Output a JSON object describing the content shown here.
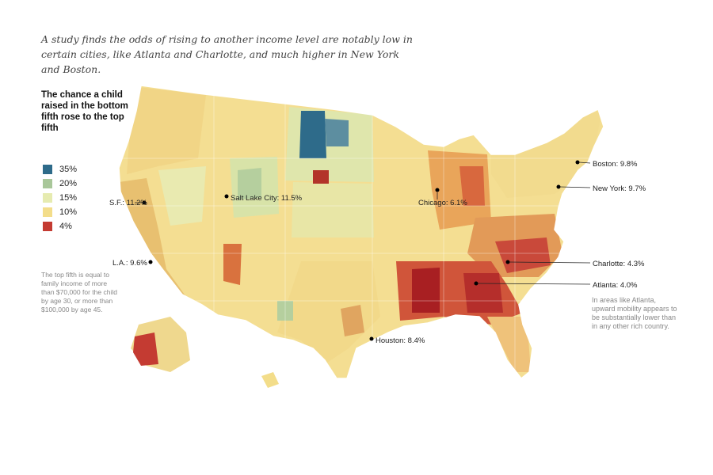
{
  "subtitle": "A study finds the odds of rising to another income level are notably low in certain cities, like Atlanta and Charlotte, and much higher in New York and Boston.",
  "legend": {
    "title": "The chance a child raised in the bottom fifth rose to the top fifth",
    "items": [
      {
        "label": "35%",
        "color": "#2e6b8a"
      },
      {
        "label": "20%",
        "color": "#a9c79a"
      },
      {
        "label": "15%",
        "color": "#e6ebb0"
      },
      {
        "label": "10%",
        "color": "#f3dd8a"
      },
      {
        "label": "4%",
        "color": "#c43b32"
      }
    ]
  },
  "note_left": "The top fifth is equal to family income of more than $70,000 for the child by age 30, or more than $100,000 by age 45.",
  "note_right": "In areas like Atlanta, upward mobility appears to be substantially lower than in any other rich country.",
  "cities": [
    {
      "name": "S.F.",
      "value": "11.2%",
      "label": "S.F.: 11.2%"
    },
    {
      "name": "Salt Lake City",
      "value": "11.5%",
      "label": "Salt Lake City: 11.5%"
    },
    {
      "name": "L.A.",
      "value": "9.6%",
      "label": "L.A.: 9.6%"
    },
    {
      "name": "Chicago",
      "value": "6.1%",
      "label": "Chicago: 6.1%"
    },
    {
      "name": "Houston",
      "value": "8.4%",
      "label": "Houston: 8.4%"
    },
    {
      "name": "Boston",
      "value": "9.8%",
      "label": "Boston: 9.8%"
    },
    {
      "name": "New York",
      "value": "9.7%",
      "label": "New York: 9.7%"
    },
    {
      "name": "Charlotte",
      "value": "4.3%",
      "label": "Charlotte: 4.3%"
    },
    {
      "name": "Atlanta",
      "value": "4.0%",
      "label": "Atlanta: 4.0%"
    }
  ]
}
